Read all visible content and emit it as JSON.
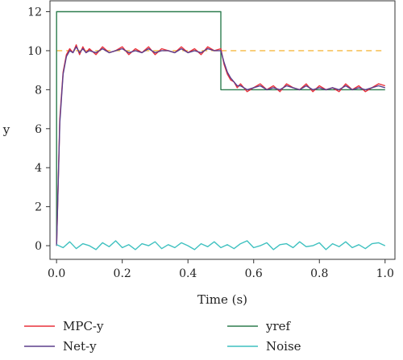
{
  "chart_data": {
    "type": "line",
    "title": "",
    "xlabel": "Time (s)",
    "ylabel": "y",
    "xlim": [
      -0.02,
      1.03
    ],
    "ylim": [
      -0.7,
      12.6
    ],
    "xticks": [
      "0.0",
      "0.2",
      "0.4",
      "0.6",
      "0.8",
      "1.0"
    ],
    "yticks": [
      "0",
      "2",
      "4",
      "6",
      "8",
      "10",
      "12"
    ],
    "grid": false,
    "legend_position": "bottom",
    "series": [
      {
        "name": "MPC-y",
        "color": "#e8303a",
        "x": [
          0,
          0.01,
          0.02,
          0.03,
          0.04,
          0.05,
          0.06,
          0.07,
          0.08,
          0.09,
          0.1,
          0.12,
          0.14,
          0.16,
          0.18,
          0.2,
          0.22,
          0.24,
          0.26,
          0.28,
          0.3,
          0.32,
          0.34,
          0.36,
          0.38,
          0.4,
          0.42,
          0.44,
          0.46,
          0.48,
          0.5,
          0.51,
          0.52,
          0.53,
          0.54,
          0.55,
          0.56,
          0.58,
          0.6,
          0.62,
          0.64,
          0.66,
          0.68,
          0.7,
          0.72,
          0.74,
          0.76,
          0.78,
          0.8,
          0.82,
          0.84,
          0.86,
          0.88,
          0.9,
          0.92,
          0.94,
          0.96,
          0.98,
          1.0
        ],
        "values": [
          0,
          6.5,
          8.9,
          9.8,
          10.1,
          9.9,
          10.3,
          9.8,
          10.2,
          9.9,
          10.1,
          9.8,
          10.2,
          9.9,
          10.0,
          10.2,
          9.8,
          10.1,
          9.9,
          10.2,
          9.8,
          10.1,
          10.0,
          9.9,
          10.2,
          9.9,
          10.1,
          9.8,
          10.2,
          10.0,
          10.1,
          9.3,
          8.8,
          8.5,
          8.4,
          8.1,
          8.3,
          7.9,
          8.1,
          8.3,
          8.0,
          8.2,
          7.9,
          8.3,
          8.1,
          8.0,
          8.3,
          7.9,
          8.2,
          8.0,
          8.1,
          7.9,
          8.3,
          8.0,
          8.2,
          7.9,
          8.1,
          8.3,
          8.2
        ]
      },
      {
        "name": "Net-y",
        "color": "#5b3f8c",
        "x": [
          0,
          0.01,
          0.02,
          0.03,
          0.04,
          0.05,
          0.06,
          0.07,
          0.08,
          0.09,
          0.1,
          0.12,
          0.14,
          0.16,
          0.18,
          0.2,
          0.22,
          0.24,
          0.26,
          0.28,
          0.3,
          0.32,
          0.34,
          0.36,
          0.38,
          0.4,
          0.42,
          0.44,
          0.46,
          0.48,
          0.5,
          0.51,
          0.52,
          0.53,
          0.54,
          0.55,
          0.56,
          0.58,
          0.6,
          0.62,
          0.64,
          0.66,
          0.68,
          0.7,
          0.72,
          0.74,
          0.76,
          0.78,
          0.8,
          0.82,
          0.84,
          0.86,
          0.88,
          0.9,
          0.92,
          0.94,
          0.96,
          0.98,
          1.0
        ],
        "values": [
          0,
          6.3,
          8.8,
          9.7,
          10.0,
          9.9,
          10.2,
          9.9,
          10.1,
          9.9,
          10.0,
          9.9,
          10.1,
          9.9,
          10.0,
          10.1,
          9.9,
          10.0,
          9.9,
          10.1,
          9.9,
          10.0,
          10.0,
          9.9,
          10.1,
          9.9,
          10.0,
          9.9,
          10.1,
          10.0,
          10.0,
          9.4,
          8.9,
          8.6,
          8.4,
          8.2,
          8.2,
          8.0,
          8.1,
          8.2,
          8.0,
          8.1,
          8.0,
          8.2,
          8.1,
          8.0,
          8.2,
          8.0,
          8.1,
          8.0,
          8.1,
          8.0,
          8.2,
          8.0,
          8.1,
          8.0,
          8.1,
          8.2,
          8.1
        ]
      },
      {
        "name": "yref",
        "color": "#2e7d4f",
        "x": [
          0,
          0,
          0.5,
          0.5,
          1.0
        ],
        "values": [
          0,
          12,
          12,
          8,
          8
        ]
      },
      {
        "name": "Noise",
        "color": "#3fc1c0",
        "x": [
          0,
          0.02,
          0.04,
          0.06,
          0.08,
          0.1,
          0.12,
          0.14,
          0.16,
          0.18,
          0.2,
          0.22,
          0.24,
          0.26,
          0.28,
          0.3,
          0.32,
          0.34,
          0.36,
          0.38,
          0.4,
          0.42,
          0.44,
          0.46,
          0.48,
          0.5,
          0.52,
          0.54,
          0.56,
          0.58,
          0.6,
          0.62,
          0.64,
          0.66,
          0.68,
          0.7,
          0.72,
          0.74,
          0.76,
          0.78,
          0.8,
          0.82,
          0.84,
          0.86,
          0.88,
          0.9,
          0.92,
          0.94,
          0.96,
          0.98,
          1.0
        ],
        "values": [
          0.05,
          -0.1,
          0.2,
          -0.15,
          0.1,
          0.0,
          -0.2,
          0.15,
          -0.05,
          0.25,
          -0.1,
          0.05,
          -0.2,
          0.1,
          0.0,
          0.2,
          -0.15,
          0.05,
          -0.1,
          0.15,
          0.0,
          -0.2,
          0.1,
          -0.05,
          0.2,
          -0.1,
          0.05,
          -0.15,
          0.1,
          0.25,
          -0.1,
          0.0,
          0.15,
          -0.2,
          0.05,
          0.1,
          -0.1,
          0.2,
          -0.05,
          0.0,
          0.15,
          -0.2,
          0.1,
          -0.05,
          0.2,
          -0.1,
          0.05,
          -0.15,
          0.1,
          0.15,
          0.0
        ]
      },
      {
        "name": "",
        "color": "#f5b942",
        "style": "dashed",
        "x": [
          0,
          1.0
        ],
        "values": [
          10,
          10
        ]
      }
    ]
  }
}
